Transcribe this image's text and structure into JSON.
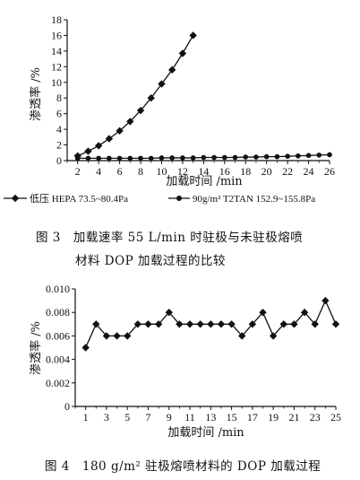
{
  "figure3": {
    "caption_line1": "图 3　加载速率 55 L/min 时驻极与未驻极熔喷",
    "caption_line2": "材料 DOP 加载过程的比较",
    "chart_data": {
      "type": "line",
      "xlabel": "加载时间 /min",
      "ylabel": "渗透率 /%",
      "xlim": [
        1,
        26
      ],
      "ylim": [
        0,
        18
      ],
      "xticks": [
        2,
        4,
        6,
        8,
        10,
        12,
        14,
        16,
        18,
        20,
        22,
        24,
        26
      ],
      "yticks": [
        0,
        2,
        4,
        6,
        8,
        10,
        12,
        14,
        16,
        18
      ],
      "legend_position": "bottom",
      "series": [
        {
          "name": "低压 HEPA 73.5~80.4Pa",
          "marker": "diamond",
          "x": [
            2,
            3,
            4,
            5,
            6,
            7,
            8,
            9,
            10,
            11,
            12,
            13
          ],
          "y": [
            0.6,
            1.2,
            1.9,
            2.8,
            3.8,
            5.0,
            6.4,
            8.0,
            9.8,
            11.6,
            13.7,
            16.0
          ]
        },
        {
          "name": "90g/m² T2TAN 152.9~155.8Pa",
          "marker": "circle",
          "x": [
            2,
            3,
            4,
            5,
            6,
            7,
            8,
            9,
            10,
            11,
            12,
            13,
            14,
            15,
            16,
            17,
            18,
            19,
            20,
            21,
            22,
            23,
            24,
            25,
            26
          ],
          "y": [
            0.3,
            0.3,
            0.3,
            0.3,
            0.3,
            0.3,
            0.3,
            0.3,
            0.35,
            0.35,
            0.35,
            0.35,
            0.4,
            0.4,
            0.4,
            0.4,
            0.45,
            0.45,
            0.5,
            0.5,
            0.55,
            0.6,
            0.65,
            0.7,
            0.75
          ]
        }
      ]
    }
  },
  "figure4": {
    "caption": "图 4　180 g/m² 驻极熔喷材料的 DOP 加载过程",
    "chart_data": {
      "type": "line",
      "xlabel": "加载时间 /min",
      "ylabel": "渗透率 /%",
      "xlim": [
        0,
        25
      ],
      "ylim": [
        0,
        0.01
      ],
      "xticks": [
        1,
        3,
        5,
        7,
        9,
        11,
        13,
        15,
        17,
        19,
        21,
        23,
        25
      ],
      "xtick_labels": [
        "1",
        "3",
        "5",
        "7",
        "9",
        "11",
        "13",
        "15",
        "17",
        "19",
        "21",
        "23",
        "25"
      ],
      "yticks": [
        0,
        0.002,
        0.004,
        0.006,
        0.008,
        0.01
      ],
      "ytick_labels": [
        "0",
        "0.002",
        "0.004",
        "0.006",
        "0.008",
        "0.010"
      ],
      "series": [
        {
          "marker": "diamond",
          "x": [
            1,
            2,
            3,
            4,
            5,
            6,
            7,
            8,
            9,
            10,
            11,
            12,
            13,
            14,
            15,
            16,
            17,
            18,
            19,
            20,
            21,
            22,
            23,
            24,
            25
          ],
          "y": [
            0.005,
            0.007,
            0.006,
            0.006,
            0.006,
            0.007,
            0.007,
            0.007,
            0.008,
            0.007,
            0.007,
            0.007,
            0.007,
            0.007,
            0.007,
            0.006,
            0.007,
            0.008,
            0.006,
            0.007,
            0.007,
            0.008,
            0.007,
            0.009,
            0.007
          ]
        }
      ]
    }
  }
}
